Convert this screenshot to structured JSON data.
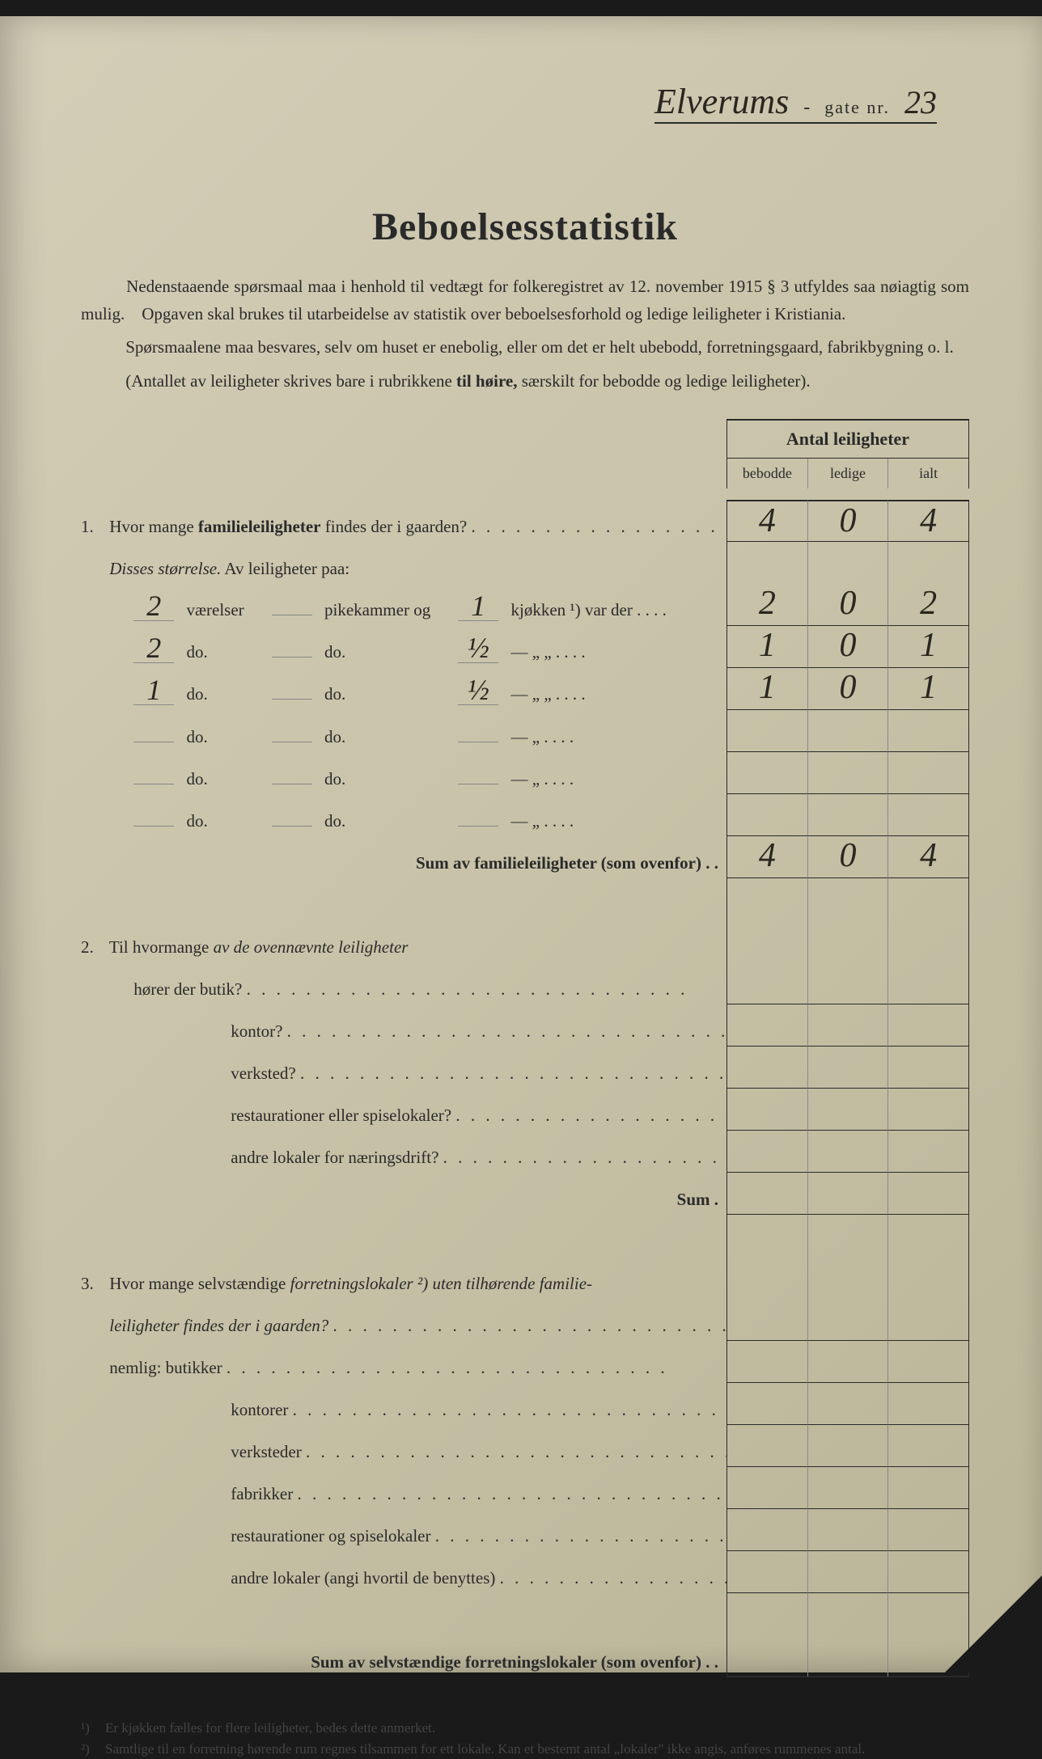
{
  "header": {
    "street_handwritten": "Elverums",
    "gate_label": "gate nr.",
    "number_handwritten": "23"
  },
  "title": "Beboelsesstatistik",
  "intro": {
    "p1_a": "Nedenstaaende spørsmaal maa i henhold til vedtægt for folkeregistret av 12. november 1915 § 3 utfyldes saa nøiagtig som mulig.",
    "p1_b": "Opgaven skal brukes til utarbeidelse av statistik over beboelsesforhold og ledige leiligheter i Kristiania.",
    "p2": "Spørsmaalene maa besvares, selv om huset er enebolig, eller om det er helt ubebodd, forretningsgaard, fabrikbygning o. l.",
    "p3_a": "(Antallet av leiligheter skrives bare i rubrikkene ",
    "p3_b": "til høire,",
    "p3_c": " særskilt for bebodde og ledige leiligheter)."
  },
  "columns": {
    "group": "Antal leiligheter",
    "c1": "bebodde",
    "c2": "ledige",
    "c3": "ialt"
  },
  "q1": {
    "num": "1.",
    "text_a": "Hvor mange ",
    "text_b": "familieleiligheter",
    "text_c": " findes der i gaarden?",
    "cells": [
      "4",
      "0",
      "4"
    ],
    "sub_label_a": "Disses størrelse.",
    "sub_label_b": "  Av leiligheter paa:",
    "rows": [
      {
        "v": "2",
        "pk": "",
        "kj": "1",
        "label_a": "værelser",
        "label_b": "pikekammer og",
        "label_c": "kjøkken ¹) var der",
        "cells": [
          "2",
          "0",
          "2"
        ]
      },
      {
        "v": "2",
        "pk": "",
        "kj": "½",
        "label_a": "do.",
        "label_b": "do.",
        "label_c": "—        „      „",
        "cells": [
          "1",
          "0",
          "1"
        ]
      },
      {
        "v": "1",
        "pk": "",
        "kj": "½",
        "label_a": "do.",
        "label_b": "do.",
        "label_c": "—        „      „",
        "cells": [
          "1",
          "0",
          "1"
        ]
      },
      {
        "v": "",
        "pk": "",
        "kj": "",
        "label_a": "do.",
        "label_b": "do.",
        "label_c": "—        „",
        "cells": [
          "",
          "",
          ""
        ]
      },
      {
        "v": "",
        "pk": "",
        "kj": "",
        "label_a": "do.",
        "label_b": "do.",
        "label_c": "—        „",
        "cells": [
          "",
          "",
          ""
        ]
      },
      {
        "v": "",
        "pk": "",
        "kj": "",
        "label_a": "do.",
        "label_b": "do.",
        "label_c": "—        „",
        "cells": [
          "",
          "",
          ""
        ]
      }
    ],
    "sum_label": "Sum av familieleiligheter",
    "sum_suffix": " (som ovenfor) .  .",
    "sum_cells": [
      "4",
      "0",
      "4"
    ]
  },
  "q2": {
    "num": "2.",
    "text_a": "Til hvormange ",
    "text_b": "av de ovennævnte leiligheter",
    "rows": [
      "hører der butik?",
      "kontor?",
      "verksted?",
      "restaurationer eller spiselokaler?",
      "andre lokaler for næringsdrift?"
    ],
    "sum": "Sum  ."
  },
  "q3": {
    "num": "3.",
    "text_a": "Hvor mange selvstændige ",
    "text_b": "forretningslokaler ²)",
    "text_c": " uten tilhørende ",
    "text_d": "familie-leiligheter findes der i gaarden?",
    "nemlig": "nemlig: butikker",
    "rows": [
      "kontorer",
      "verksteder",
      "fabrikker",
      "restaurationer og spiselokaler",
      "andre lokaler (angi hvortil de benyttes)"
    ],
    "sum": "Sum av selvstændige forretningslokaler",
    "sum_suffix": " (som ovenfor)  .  ."
  },
  "footnotes": {
    "f1_mark": "¹)",
    "f1": "Er kjøkken fælles for flere leiligheter, bedes dette anmerket.",
    "f2_mark": "²)",
    "f2": "Samtlige til en forretning hørende rum regnes tilsammen for ett lokale.  Kan et bestemt antal „lokaler\" ikke angis, anføres rummenes antal."
  },
  "colors": {
    "paper": "#c8c2a8",
    "ink": "#2a2a2a",
    "handwriting": "#2a2620"
  }
}
